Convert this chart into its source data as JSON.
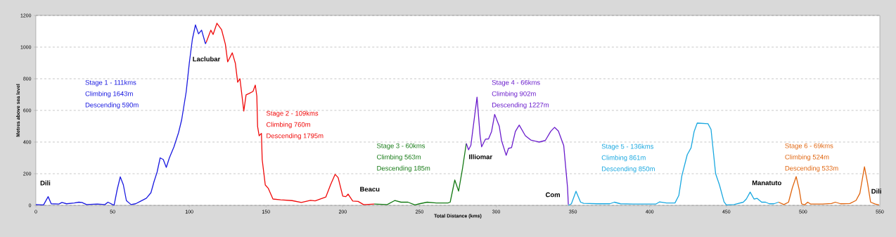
{
  "chart_data": {
    "type": "line",
    "xlabel": "Total Distance  (kms)",
    "ylabel": "Metres above sea level",
    "xlim": [
      0,
      550
    ],
    "ylim": [
      0,
      1200
    ],
    "xticks": [
      0,
      50,
      100,
      150,
      200,
      250,
      300,
      350,
      400,
      450,
      500,
      550
    ],
    "yticks": [
      0,
      200,
      400,
      600,
      800,
      1000,
      1200
    ],
    "grid": "y",
    "line_style": "solid",
    "marker": "none",
    "series": [
      {
        "color": "#1a1ae0",
        "x": [
          0,
          5,
          8,
          10,
          15,
          17,
          20,
          25,
          28,
          30,
          33,
          40,
          45,
          47,
          50,
          51,
          53,
          55,
          57,
          59,
          62,
          65,
          68,
          72,
          75,
          77,
          79,
          81,
          83,
          85,
          87,
          90,
          93,
          95,
          98,
          100,
          102,
          104,
          106,
          108,
          110.5,
          111
        ],
        "values": [
          5,
          3,
          55,
          10,
          8,
          18,
          10,
          15,
          20,
          18,
          5,
          8,
          5,
          20,
          5,
          2,
          100,
          180,
          130,
          30,
          5,
          10,
          25,
          45,
          80,
          150,
          210,
          300,
          290,
          240,
          300,
          370,
          460,
          540,
          720,
          900,
          1050,
          1140,
          1084,
          1107,
          1022,
          1030
        ]
      },
      {
        "color": "#f00a0a",
        "x": [
          111,
          114,
          115.5,
          118,
          121,
          123.5,
          125,
          128,
          130,
          131.5,
          133,
          135.5,
          137,
          139,
          141.5,
          143,
          144,
          144.5,
          145.5,
          147,
          147.5,
          149.5,
          151.5,
          154.5,
          159.5,
          167,
          173,
          179,
          182,
          189,
          192,
          195,
          197,
          200,
          202,
          203.5,
          206.5,
          210,
          213.5,
          215,
          220.5
        ],
        "values": [
          1030,
          1107,
          1080,
          1151,
          1111,
          1018,
          907,
          964,
          898,
          778,
          800,
          596,
          698,
          707,
          720,
          760,
          690,
          498,
          440,
          455,
          289,
          129,
          107,
          40,
          35,
          30,
          18,
          32,
          28,
          53,
          129,
          196,
          175,
          58,
          55,
          71,
          27,
          25,
          5,
          5,
          8
        ]
      },
      {
        "color": "#157a15",
        "x": [
          220.5,
          229,
          234,
          238,
          242.5,
          247,
          250,
          255,
          261,
          268.5,
          270,
          273,
          275.5,
          278,
          280.5
        ],
        "values": [
          8,
          5,
          31,
          20,
          20,
          3,
          10,
          20,
          15,
          15,
          20,
          160,
          90,
          231,
          391
        ]
      },
      {
        "color": "#6a1ccc",
        "x": [
          280.5,
          282,
          283.5,
          287.5,
          289.5,
          290.5,
          293,
          295,
          297,
          299,
          302,
          303.5,
          306.5,
          308,
          310,
          312.5,
          315,
          319,
          322.5,
          328,
          332,
          335.5,
          338,
          340.5,
          344,
          346.5,
          347
        ],
        "values": [
          391,
          351,
          380,
          684,
          440,
          370,
          418,
          420,
          467,
          575,
          500,
          409,
          316,
          360,
          365,
          467,
          507,
          440,
          413,
          400,
          410,
          467,
          493,
          470,
          378,
          111,
          5
        ]
      },
      {
        "color": "#1aa8e0",
        "x": [
          347,
          349,
          352,
          355,
          357,
          366,
          374,
          377,
          381,
          389,
          404,
          406.5,
          411,
          416.5,
          419,
          421,
          424.5,
          427,
          429,
          431,
          438,
          440,
          443,
          445.5,
          448.5,
          450,
          455,
          461,
          463,
          465.5,
          468,
          470,
          473,
          475.5,
          478,
          481,
          484
        ],
        "values": [
          0,
          10,
          89,
          20,
          13,
          10,
          10,
          20,
          10,
          8,
          8,
          22,
          15,
          15,
          62,
          187,
          320,
          364,
          467,
          520,
          516,
          480,
          200,
          129,
          22,
          3,
          5,
          20,
          40,
          84,
          40,
          44,
          20,
          20,
          10,
          10,
          20
        ]
      },
      {
        "color": "#e0650f",
        "x": [
          484,
          487.5,
          490.5,
          493,
          495.5,
          497.5,
          499,
          501,
          503,
          505,
          512.5,
          518.5,
          521,
          524.5,
          530.5,
          534.5,
          537,
          540,
          542,
          544,
          547,
          549.5
        ],
        "values": [
          20,
          5,
          20,
          111,
          182,
          98,
          10,
          3,
          20,
          8,
          8,
          12,
          20,
          10,
          12,
          31,
          76,
          244,
          142,
          20,
          8,
          3
        ]
      }
    ],
    "annotations": [
      "Stage 1 - 111kms",
      "Climbing 1643m",
      "Descending 590m",
      "Stage 2 - 109kms",
      "Climbing 760m",
      "Descending 1795m",
      "Stage 3 - 60kms",
      "Climbing 563m",
      "Descending 185m",
      "Stage 4 - 66kms",
      "Climbing 902m",
      "Descending 1227m",
      "Stage 5 - 136kms",
      "Climbing 861m",
      "Descending 850m",
      "Stage 6 - 69kms",
      "Climbing 524m",
      "Descending 533m",
      "Dili",
      "Laclubar",
      "Beacu",
      "Illiomar",
      "Com",
      "Manatuto",
      "Dili"
    ]
  }
}
